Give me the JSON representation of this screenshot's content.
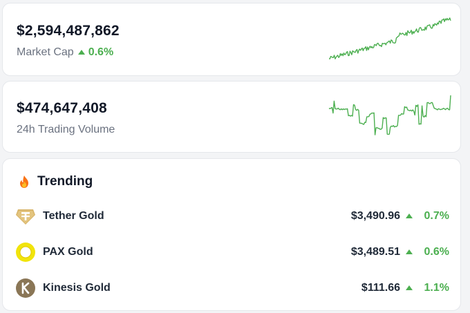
{
  "market_cap": {
    "value": "$2,594,487,862",
    "label": "Market Cap",
    "change": "0.6%",
    "trend_icon": "triangle-up-icon",
    "color": "#4caf50"
  },
  "trading_volume": {
    "value": "$474,647,408",
    "label": "24h Trading Volume"
  },
  "trending": {
    "title": "Trending",
    "icon": "fire-icon",
    "coins": [
      {
        "name": "Tether Gold",
        "price": "$3,490.96",
        "change": "0.7%",
        "logo": "tether-gold-logo",
        "logo_color": "#d8b56a"
      },
      {
        "name": "PAX Gold",
        "price": "$3,489.51",
        "change": "0.6%",
        "logo": "pax-gold-logo",
        "logo_color": "#f1e40b"
      },
      {
        "name": "Kinesis Gold",
        "price": "$111.66",
        "change": "1.1%",
        "logo": "kinesis-gold-logo",
        "logo_color": "#8a7656"
      }
    ]
  },
  "accent_green": "#4caf50"
}
